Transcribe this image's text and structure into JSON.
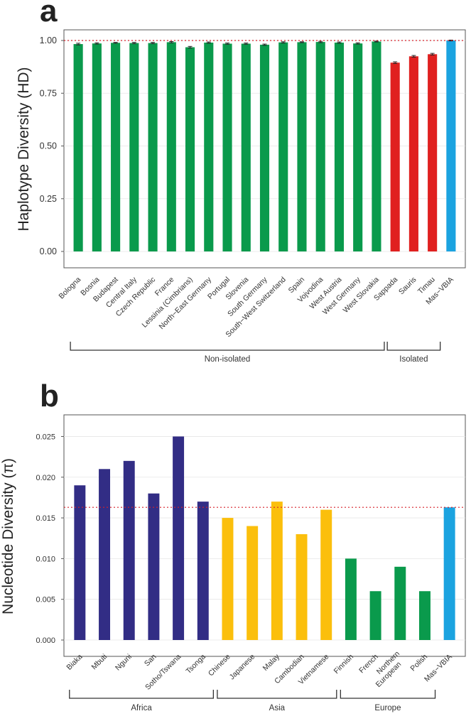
{
  "chart_data": [
    {
      "panel": "a",
      "type": "bar",
      "title": "",
      "xlabel": "",
      "ylabel": "Haplotype Diversity (HD)",
      "ylim": [
        0,
        1.0
      ],
      "yticks": [
        "0.00",
        "0.25",
        "0.50",
        "0.75",
        "1.00"
      ],
      "reference_line": 1.0,
      "categories": [
        "Bologna",
        "Bosnia",
        "Budapest",
        "Central Italy",
        "Czech Republic",
        "France",
        "Lessinia (Cimbrians)",
        "North−East Germany",
        "Portugal",
        "Slovenia",
        "South Germany",
        "South−West Switzerland",
        "Spain",
        "Vojvodina",
        "West Austria",
        "West Germany",
        "West Slovakia",
        "Sappada",
        "Sauris",
        "Timau",
        "Mas−VBIA"
      ],
      "values": [
        0.983,
        0.986,
        0.989,
        0.988,
        0.988,
        0.992,
        0.968,
        0.99,
        0.985,
        0.985,
        0.98,
        0.991,
        0.992,
        0.993,
        0.99,
        0.986,
        0.995,
        0.895,
        0.925,
        0.935,
        1.0
      ],
      "errors": [
        0.004,
        0.003,
        0.002,
        0.003,
        0.003,
        0.003,
        0.004,
        0.003,
        0.003,
        0.003,
        0.003,
        0.003,
        0.002,
        0.003,
        0.003,
        0.003,
        0.002,
        0.004,
        0.004,
        0.004,
        0.002
      ],
      "group_of_bar": [
        0,
        0,
        0,
        0,
        0,
        0,
        0,
        0,
        0,
        0,
        0,
        0,
        0,
        0,
        0,
        0,
        0,
        1,
        1,
        1,
        2
      ],
      "groups": [
        {
          "label": "Non-isolated",
          "from": 0,
          "to": 16
        },
        {
          "label": "Isolated",
          "from": 17,
          "to": 19
        }
      ],
      "colors": [
        "#0a9a4c",
        "#e0201f",
        "#1ba3e0"
      ]
    },
    {
      "panel": "b",
      "type": "bar",
      "title": "",
      "xlabel": "",
      "ylabel": "Nucleotide Diversity (π)",
      "ylim": [
        0,
        0.026
      ],
      "yticks": [
        "0.000",
        "0.005",
        "0.010",
        "0.015",
        "0.020",
        "0.025"
      ],
      "reference_line": 0.0163,
      "categories": [
        "Biaka",
        "Mbuti",
        "Nguni",
        "San",
        "Sotho/Tswana",
        "Tsonga",
        "Chinese",
        "Japanese",
        "Malay",
        "Cambodian",
        "Vietnamese",
        "Finnish",
        "French",
        "Northern European",
        "Polish",
        "Mas−VBIA"
      ],
      "values": [
        0.019,
        0.021,
        0.022,
        0.018,
        0.025,
        0.017,
        0.015,
        0.014,
        0.017,
        0.013,
        0.016,
        0.01,
        0.006,
        0.009,
        0.006,
        0.0163
      ],
      "group_of_bar": [
        0,
        0,
        0,
        0,
        0,
        0,
        1,
        1,
        1,
        1,
        1,
        2,
        2,
        2,
        2,
        3
      ],
      "groups": [
        {
          "label": "Africa",
          "from": 0,
          "to": 5
        },
        {
          "label": "Asia",
          "from": 6,
          "to": 10
        },
        {
          "label": "Europe",
          "from": 11,
          "to": 14
        }
      ],
      "colors": [
        "#322d85",
        "#fbbf0c",
        "#0a9a4c",
        "#1ba3e0"
      ]
    }
  ]
}
